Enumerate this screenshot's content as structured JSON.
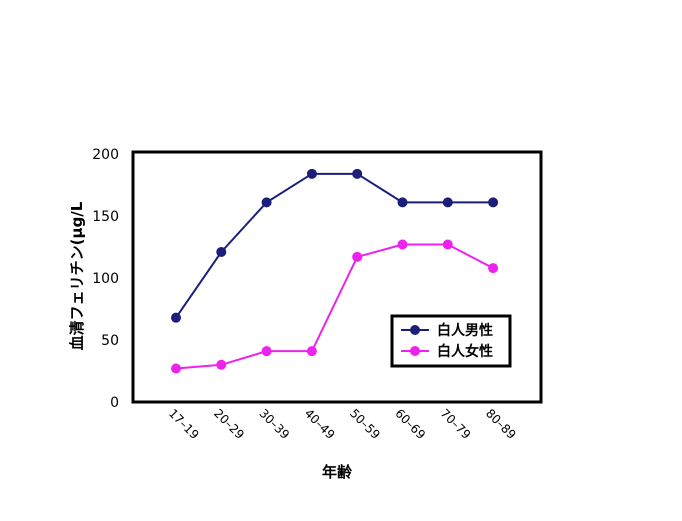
{
  "chart_data": {
    "type": "line",
    "title": "",
    "xlabel": "年齢",
    "ylabel": "血清フェリチン(μg/L",
    "ylim": [
      0,
      200
    ],
    "yticks": [
      "0",
      "50",
      "100",
      "150",
      "200"
    ],
    "categories": [
      "17–19",
      "20–29",
      "30–39",
      "40–49",
      "50–59",
      "60–69",
      "70–79",
      "80–89"
    ],
    "grid": false,
    "legend_position": "right",
    "series": [
      {
        "name": "白人男性",
        "color": "#1b1f7a",
        "values": [
          68,
          121,
          161,
          184,
          184,
          161,
          161,
          161
        ]
      },
      {
        "name": "白人女性",
        "color": "#ee22ee",
        "values": [
          27,
          30,
          41,
          41,
          117,
          127,
          127,
          108
        ]
      }
    ]
  }
}
